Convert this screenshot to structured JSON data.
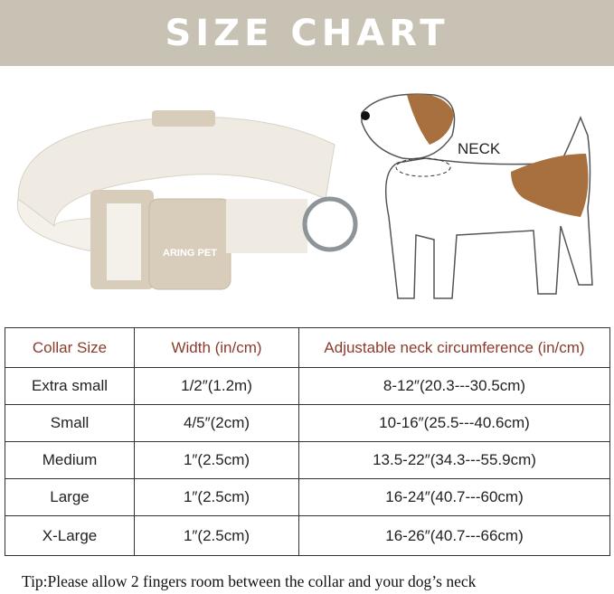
{
  "title": "SIZE CHART",
  "collar_image": {
    "buckle_text": "ARING PET"
  },
  "dog_image": {
    "neck_label": "NECK"
  },
  "table": {
    "headers": [
      "Collar Size",
      "Width (in/cm)",
      "Adjustable neck circumference (in/cm)"
    ],
    "rows": [
      [
        "Extra small",
        "1/2″(1.2m)",
        "8-12″(20.3---30.5cm)"
      ],
      [
        "Small",
        "4/5″(2cm)",
        "10-16″(25.5---40.6cm)"
      ],
      [
        "Medium",
        "1″(2.5cm)",
        "13.5-22″(34.3---55.9cm)"
      ],
      [
        "Large",
        "1″(2.5cm)",
        "16-24″(40.7---60cm)"
      ],
      [
        "X-Large",
        "1″(2.5cm)",
        "16-26″(40.7---66cm)"
      ]
    ]
  },
  "tip": "Tip:Please allow 2 fingers room between the collar and your dog’s neck",
  "colors": {
    "banner": "#c8c2b5",
    "header_text": "#8b3b2c",
    "collar": "#efebe3",
    "buckle": "#d8cdbb",
    "dog_patch": "#a8703e"
  }
}
